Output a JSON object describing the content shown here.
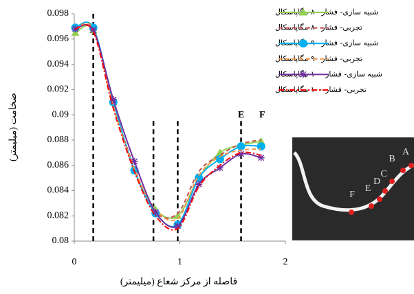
{
  "chart_data": {
    "type": "line",
    "x_label": "فاصله از مرکز شعاع (میلیمتر)",
    "y_label": "ضخامت (میلیمتر)",
    "x": [
      0.01,
      0.18,
      0.37,
      0.57,
      0.77,
      0.98,
      1.18,
      1.38,
      1.58,
      1.77
    ],
    "series": [
      {
        "name": "شبیه سازی- فشار ۸۰ مگاپاسکال",
        "color": "#92d050",
        "dash": "solid",
        "marker": "triangle",
        "values": [
          0.0965,
          0.0967,
          0.091,
          0.0856,
          0.0825,
          0.082,
          0.085,
          0.087,
          0.0876,
          0.0879
        ]
      },
      {
        "name": "تجربی- فشار ۸۰ مگاپاسکال",
        "color": "#c0504d",
        "dash": "dashed",
        "marker": null,
        "values": [
          0.0969,
          0.0968,
          0.0908,
          0.0858,
          0.0823,
          0.0822,
          0.0855,
          0.0868,
          0.0877,
          0.088
        ]
      },
      {
        "name": "شبیه سازی- فشار ۹۰ مگاپاسکال",
        "color": "#00b0f0",
        "dash": "solid",
        "marker": "circle",
        "values": [
          0.0969,
          0.0969,
          0.091,
          0.0856,
          0.0822,
          0.0813,
          0.085,
          0.0865,
          0.0875,
          0.0875
        ]
      },
      {
        "name": "تجربی- فشار ۹۰ مگاپاسکال",
        "color": "#f79646",
        "dash": "dashed",
        "marker": null,
        "values": [
          0.0968,
          0.0968,
          0.0907,
          0.0857,
          0.0825,
          0.0818,
          0.0852,
          0.0867,
          0.0872,
          0.0873
        ]
      },
      {
        "name": "شبیه سازی- فشار ۱۰۰ مگاپاسکال",
        "color": "#7030a0",
        "dash": "solid",
        "marker": "star",
        "values": [
          0.0968,
          0.0967,
          0.0912,
          0.0863,
          0.0823,
          0.0812,
          0.0845,
          0.0858,
          0.0869,
          0.0866
        ]
      },
      {
        "name": "تجربی- فشار ۱۰۰ مگاپاسکال",
        "color": "#ff0000",
        "dash": "dashdot",
        "marker": null,
        "values": [
          0.0968,
          0.0966,
          0.0905,
          0.0855,
          0.082,
          0.081,
          0.0843,
          0.086,
          0.087,
          0.0868
        ]
      }
    ],
    "xlim": [
      0,
      2
    ],
    "xticks": [
      0,
      1,
      2
    ],
    "ylim": [
      0.08,
      0.098
    ],
    "yticks": [
      0.08,
      0.082,
      0.084,
      0.086,
      0.088,
      0.09,
      0.092,
      0.094,
      0.096,
      0.098
    ],
    "reference_lines": [
      {
        "x": 0.18,
        "y_top": 0.098
      },
      {
        "x": 0.75,
        "y_top": 0.0895
      },
      {
        "x": 0.98,
        "y_top": 0.0895
      },
      {
        "x": 1.58,
        "y_top": 0.0895
      }
    ],
    "annotations": [
      {
        "text": "E",
        "x": 1.58
      },
      {
        "text": "F",
        "x": 1.78
      }
    ],
    "inset_labels": [
      "A",
      "B",
      "C",
      "D",
      "E",
      "F"
    ]
  }
}
